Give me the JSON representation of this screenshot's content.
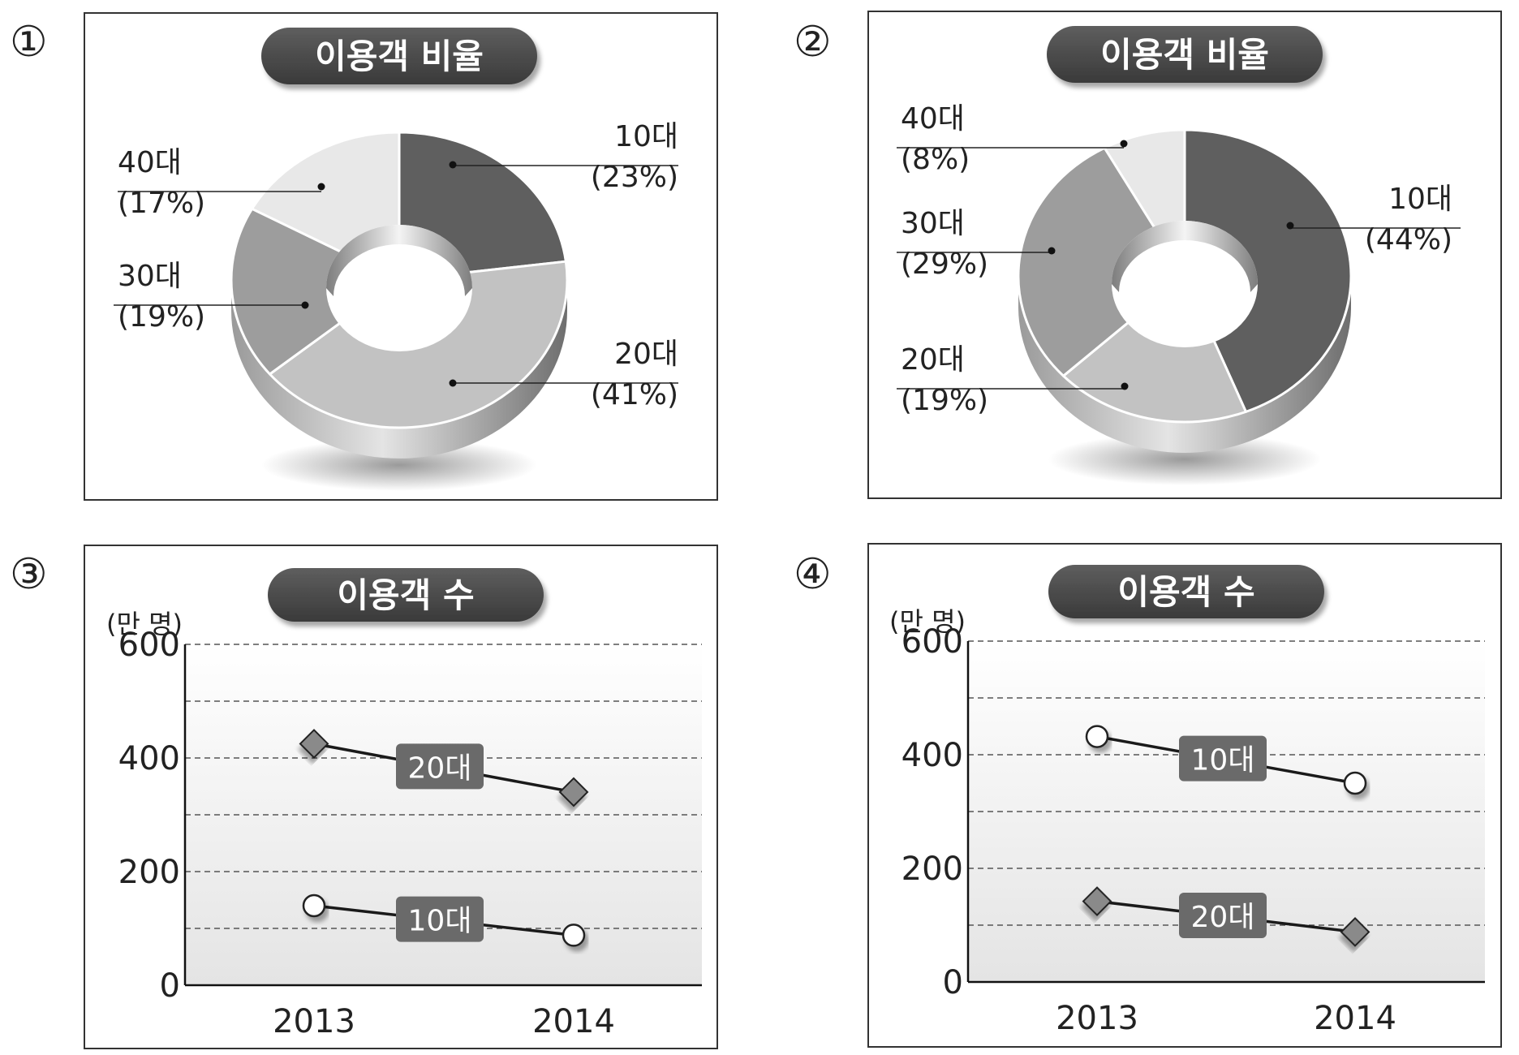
{
  "panel_numbers": [
    "①",
    "②",
    "③",
    "④"
  ],
  "chart_data": [
    {
      "type": "pie",
      "title": "이용객 비율",
      "slices": [
        {
          "label": "10대",
          "value": 23,
          "value_label": "(23%)",
          "color": "#5f5f5f"
        },
        {
          "label": "20대",
          "value": 41,
          "value_label": "(41%)",
          "color": "#c2c2c2"
        },
        {
          "label": "30대",
          "value": 19,
          "value_label": "(19%)",
          "color": "#9d9d9d"
        },
        {
          "label": "40대",
          "value": 17,
          "value_label": "(17%)",
          "color": "#e8e8e8"
        }
      ]
    },
    {
      "type": "pie",
      "title": "이용객 비율",
      "slices": [
        {
          "label": "10대",
          "value": 44,
          "value_label": "(44%)",
          "color": "#5f5f5f"
        },
        {
          "label": "20대",
          "value": 19,
          "value_label": "(19%)",
          "color": "#c2c2c2"
        },
        {
          "label": "30대",
          "value": 29,
          "value_label": "(29%)",
          "color": "#9d9d9d"
        },
        {
          "label": "40대",
          "value": 8,
          "value_label": "(8%)",
          "color": "#e8e8e8"
        }
      ]
    },
    {
      "type": "line",
      "title": "이용객 수",
      "ylabel": "(만 명)",
      "x": [
        "2013",
        "2014"
      ],
      "ylim": [
        0,
        600
      ],
      "yticks": [
        "0",
        "200",
        "400",
        "600"
      ],
      "grid": true,
      "series": [
        {
          "name": "20대",
          "values": [
            425,
            340
          ],
          "marker": "diamond"
        },
        {
          "name": "10대",
          "values": [
            140,
            88
          ],
          "marker": "circle"
        }
      ]
    },
    {
      "type": "line",
      "title": "이용객 수",
      "ylabel": "(만 명)",
      "x": [
        "2013",
        "2014"
      ],
      "ylim": [
        0,
        600
      ],
      "yticks": [
        "0",
        "200",
        "400",
        "600"
      ],
      "grid": true,
      "series": [
        {
          "name": "10대",
          "values": [
            432,
            350
          ],
          "marker": "circle"
        },
        {
          "name": "20대",
          "values": [
            142,
            88
          ],
          "marker": "diamond"
        }
      ]
    }
  ]
}
